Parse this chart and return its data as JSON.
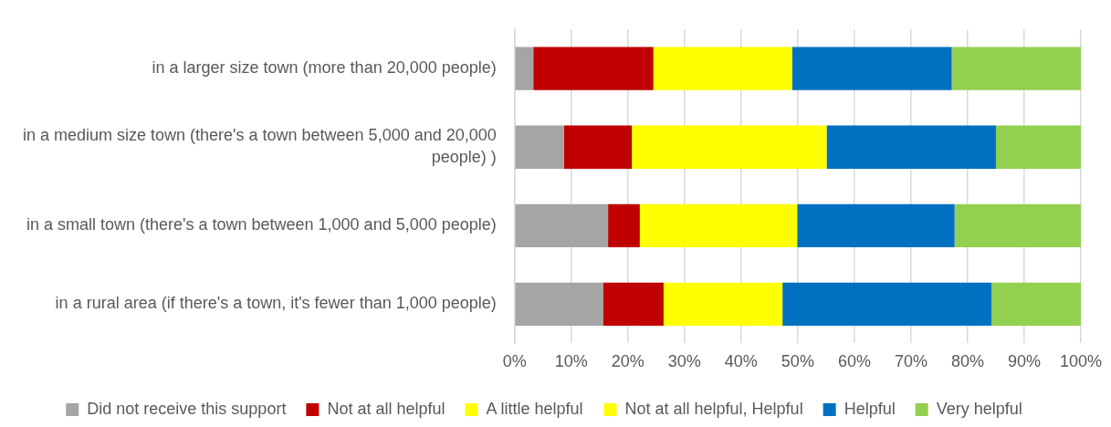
{
  "chart_data": {
    "type": "bar",
    "orientation": "horizontal",
    "stacked": true,
    "categories": [
      "in a larger size town (more than 20,000 people)",
      "in a medium size town (there's a town between 5,000 and 20,000 people) )",
      "in a small town (there's a town between 1,000 and 5,000 people)",
      "in a rural area (if there's a town, it's fewer than 1,000 people)"
    ],
    "series": [
      {
        "name": "Did not receive this support",
        "color": "#a5a5a5",
        "values": [
          3.3,
          8.7,
          16.5,
          15.6
        ]
      },
      {
        "name": "Not at all helpful",
        "color": "#c00000",
        "values": [
          21.2,
          12.0,
          5.6,
          10.7
        ]
      },
      {
        "name": "A little helpful",
        "color": "#ffff00",
        "values": [
          24.5,
          33.0,
          27.8,
          21.0
        ]
      },
      {
        "name": "Not at all helpful, Helpful",
        "color": "#ffff00",
        "values": [
          0,
          1.4,
          0,
          0
        ]
      },
      {
        "name": "Helpful",
        "color": "#0070c0",
        "values": [
          28.2,
          29.9,
          27.8,
          36.9
        ]
      },
      {
        "name": "Very helpful",
        "color": "#92d050",
        "values": [
          22.8,
          15.0,
          22.3,
          15.8
        ]
      }
    ],
    "xlim": [
      0,
      100
    ],
    "xticks": [
      {
        "value": 0,
        "label": "0%"
      },
      {
        "value": 10,
        "label": "10%"
      },
      {
        "value": 20,
        "label": "20%"
      },
      {
        "value": 30,
        "label": "30%"
      },
      {
        "value": 40,
        "label": "40%"
      },
      {
        "value": 50,
        "label": "50%"
      },
      {
        "value": 60,
        "label": "60%"
      },
      {
        "value": 70,
        "label": "70%"
      },
      {
        "value": 80,
        "label": "80%"
      },
      {
        "value": 90,
        "label": "90%"
      },
      {
        "value": 100,
        "label": "100%"
      }
    ],
    "grid": "x",
    "legend": "bottom"
  }
}
